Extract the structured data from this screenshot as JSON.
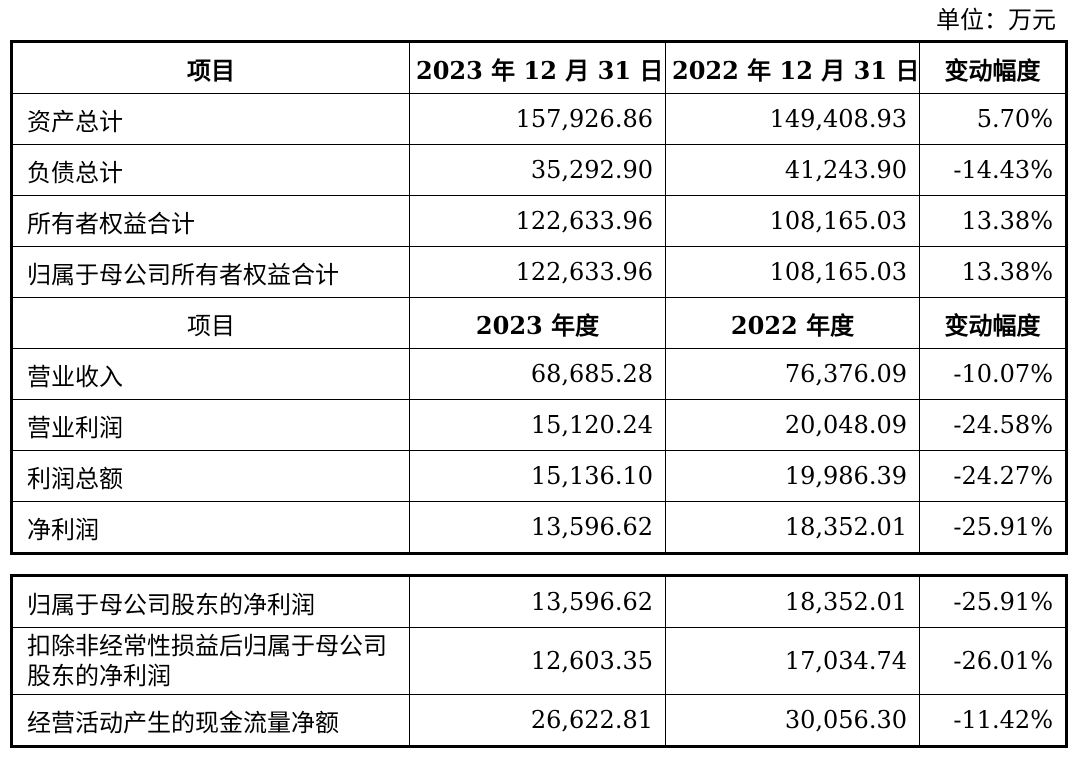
{
  "unit_label": "单位：万元",
  "table1": {
    "header": [
      "项目",
      "2023 年 12 月 31 日",
      "2022 年 12 月 31 日",
      "变动幅度"
    ],
    "rows": [
      [
        "资产总计",
        "157,926.86",
        "149,408.93",
        "5.70%"
      ],
      [
        "负债总计",
        "35,292.90",
        "41,243.90",
        "-14.43%"
      ],
      [
        "所有者权益合计",
        "122,633.96",
        "108,165.03",
        "13.38%"
      ],
      [
        "归属于母公司所有者权益合计",
        "122,633.96",
        "108,165.03",
        "13.38%"
      ]
    ],
    "header2": [
      "项目",
      "2023 年度",
      "2022 年度",
      "变动幅度"
    ],
    "rows2": [
      [
        "营业收入",
        "68,685.28",
        "76,376.09",
        "-10.07%"
      ],
      [
        "营业利润",
        "15,120.24",
        "20,048.09",
        "-24.58%"
      ],
      [
        "利润总额",
        "15,136.10",
        "19,986.39",
        "-24.27%"
      ],
      [
        "净利润",
        "13,596.62",
        "18,352.01",
        "-25.91%"
      ]
    ]
  },
  "table2": {
    "rows": [
      [
        "归属于母公司股东的净利润",
        "13,596.62",
        "18,352.01",
        "-25.91%"
      ],
      [
        "扣除非经常性损益后归属于母公司股东的净利润",
        "12,603.35",
        "17,034.74",
        "-26.01%"
      ],
      [
        "经营活动产生的现金流量净额",
        "26,622.81",
        "30,056.30",
        "-11.42%"
      ]
    ]
  }
}
